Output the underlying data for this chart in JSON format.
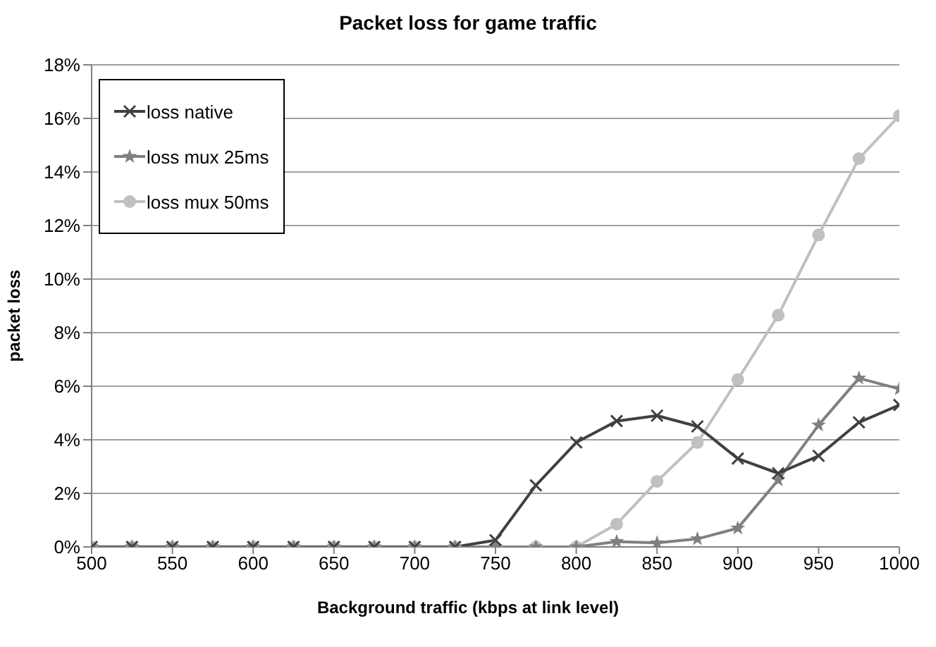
{
  "chart_data": {
    "type": "line",
    "title": "Packet loss for game traffic",
    "xlabel": "Background traffic (kbps at link level)",
    "ylabel": "packet loss",
    "x": [
      500,
      525,
      550,
      575,
      600,
      625,
      650,
      675,
      700,
      725,
      750,
      775,
      800,
      825,
      850,
      875,
      900,
      925,
      950,
      975,
      1000
    ],
    "xlim": [
      500,
      1000
    ],
    "xticks": [
      500,
      550,
      600,
      650,
      700,
      750,
      800,
      850,
      900,
      950,
      1000
    ],
    "ylim": [
      0,
      18
    ],
    "yticks": [
      {
        "value": 0,
        "label": "0%"
      },
      {
        "value": 2,
        "label": "2%"
      },
      {
        "value": 4,
        "label": "4%"
      },
      {
        "value": 6,
        "label": "6%"
      },
      {
        "value": 8,
        "label": "8%"
      },
      {
        "value": 10,
        "label": "10%"
      },
      {
        "value": 12,
        "label": "12%"
      },
      {
        "value": 14,
        "label": "14%"
      },
      {
        "value": 16,
        "label": "16%"
      },
      {
        "value": 18,
        "label": "18%"
      }
    ],
    "grid": "y",
    "legend": "top left",
    "line_style": "solid",
    "series": [
      {
        "name": "loss native",
        "color": "#404040",
        "marker": "cross",
        "values": [
          0,
          0,
          0,
          0,
          0,
          0,
          0,
          0,
          0,
          0,
          0.25,
          2.3,
          3.9,
          4.7,
          4.9,
          4.5,
          3.3,
          2.75,
          3.4,
          4.65,
          5.3
        ]
      },
      {
        "name": "loss mux 25ms",
        "color": "#808080",
        "marker": "star",
        "values": [
          0,
          0,
          0,
          0,
          0,
          0,
          0,
          0,
          0,
          0,
          0,
          0,
          0,
          0.2,
          0.15,
          0.3,
          0.7,
          2.5,
          4.55,
          6.3,
          5.9
        ]
      },
      {
        "name": "loss mux 50ms",
        "color": "#c0c0c0",
        "marker": "circle",
        "values": [
          0,
          0,
          0,
          0,
          0,
          0,
          0,
          0,
          0,
          0,
          0,
          0,
          0,
          0.85,
          2.45,
          3.9,
          6.25,
          8.65,
          11.65,
          14.5,
          16.1
        ]
      }
    ]
  }
}
